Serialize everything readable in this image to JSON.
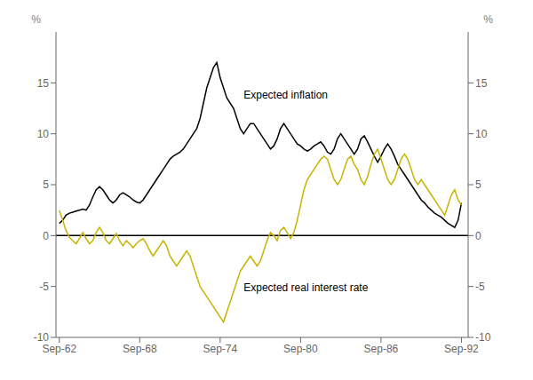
{
  "chart_data": {
    "type": "line",
    "x": [
      1962.75,
      1963.0,
      1963.25,
      1963.5,
      1963.75,
      1964.0,
      1964.25,
      1964.5,
      1964.75,
      1965.0,
      1965.25,
      1965.5,
      1965.75,
      1966.0,
      1966.25,
      1966.5,
      1966.75,
      1967.0,
      1967.25,
      1967.5,
      1967.75,
      1968.0,
      1968.25,
      1968.5,
      1968.75,
      1969.0,
      1969.25,
      1969.5,
      1969.75,
      1970.0,
      1970.25,
      1970.5,
      1970.75,
      1971.0,
      1971.25,
      1971.5,
      1971.75,
      1972.0,
      1972.25,
      1972.5,
      1972.75,
      1973.0,
      1973.25,
      1973.5,
      1973.75,
      1974.0,
      1974.25,
      1974.5,
      1974.75,
      1975.0,
      1975.25,
      1975.5,
      1975.75,
      1976.0,
      1976.25,
      1976.5,
      1976.75,
      1977.0,
      1977.25,
      1977.5,
      1977.75,
      1978.0,
      1978.25,
      1978.5,
      1978.75,
      1979.0,
      1979.25,
      1979.5,
      1979.75,
      1980.0,
      1980.25,
      1980.5,
      1980.75,
      1981.0,
      1981.25,
      1981.5,
      1981.75,
      1982.0,
      1982.25,
      1982.5,
      1982.75,
      1983.0,
      1983.25,
      1983.5,
      1983.75,
      1984.0,
      1984.25,
      1984.5,
      1984.75,
      1985.0,
      1985.25,
      1985.5,
      1985.75,
      1986.0,
      1986.25,
      1986.5,
      1986.75,
      1987.0,
      1987.25,
      1987.5,
      1987.75,
      1988.0,
      1988.25,
      1988.5,
      1988.75,
      1989.0,
      1989.25,
      1989.5,
      1989.75,
      1990.0,
      1990.25,
      1990.5,
      1990.75,
      1991.0,
      1991.25,
      1991.5,
      1991.75,
      1992.0,
      1992.25,
      1992.5,
      1992.75
    ],
    "series": [
      {
        "color": "#000000",
        "values": [
          1.2,
          1.5,
          2.0,
          2.2,
          2.3,
          2.4,
          2.5,
          2.6,
          2.5,
          3.0,
          3.8,
          4.5,
          4.8,
          4.5,
          4.0,
          3.5,
          3.2,
          3.5,
          4.0,
          4.2,
          4.0,
          3.8,
          3.5,
          3.3,
          3.2,
          3.5,
          4.0,
          4.5,
          5.0,
          5.5,
          6.0,
          6.5,
          7.0,
          7.5,
          7.8,
          8.0,
          8.2,
          8.5,
          9.0,
          9.5,
          10.0,
          10.5,
          11.5,
          13.0,
          14.5,
          15.5,
          16.5,
          17.0,
          15.5,
          14.5,
          13.5,
          13.0,
          12.5,
          11.5,
          10.5,
          10.0,
          10.5,
          11.0,
          11.0,
          10.5,
          10.0,
          9.5,
          9.0,
          8.5,
          8.8,
          9.5,
          10.5,
          11.0,
          10.5,
          10.0,
          9.5,
          9.0,
          8.8,
          8.5,
          8.3,
          8.5,
          8.8,
          9.0,
          9.2,
          8.8,
          8.2,
          8.0,
          8.5,
          9.5,
          10.0,
          9.5,
          9.0,
          8.5,
          8.0,
          8.5,
          9.5,
          9.8,
          9.2,
          8.5,
          7.8,
          7.2,
          7.8,
          8.5,
          9.0,
          8.5,
          7.8,
          7.0,
          6.5,
          6.0,
          5.5,
          5.0,
          4.5,
          4.0,
          3.5,
          3.2,
          2.8,
          2.5,
          2.2,
          2.0,
          1.8,
          1.5,
          1.2,
          1.0,
          0.8,
          1.5,
          3.2
        ]
      },
      {
        "color": "#c8b400",
        "values": [
          2.5,
          1.5,
          0.5,
          -0.2,
          -0.5,
          -0.8,
          -0.3,
          0.3,
          -0.3,
          -0.8,
          -0.5,
          0.3,
          0.8,
          0.3,
          -0.5,
          -0.8,
          -0.3,
          0.2,
          -0.5,
          -1.0,
          -0.5,
          -0.8,
          -1.2,
          -0.8,
          -0.5,
          -0.3,
          -0.8,
          -1.5,
          -2.0,
          -1.5,
          -1.0,
          -0.5,
          -1.0,
          -2.0,
          -2.5,
          -3.0,
          -2.5,
          -2.0,
          -1.5,
          -2.0,
          -3.0,
          -4.0,
          -5.0,
          -5.5,
          -6.0,
          -6.5,
          -7.0,
          -7.5,
          -8.0,
          -8.5,
          -7.5,
          -6.5,
          -5.5,
          -4.5,
          -3.5,
          -3.0,
          -2.5,
          -2.0,
          -2.5,
          -3.0,
          -2.5,
          -1.5,
          -0.5,
          0.3,
          0.0,
          -0.5,
          0.5,
          0.8,
          0.3,
          -0.3,
          0.3,
          1.5,
          3.0,
          4.5,
          5.5,
          6.0,
          6.5,
          7.0,
          7.5,
          7.8,
          7.5,
          6.5,
          5.5,
          5.0,
          5.5,
          6.5,
          7.5,
          7.8,
          7.0,
          6.5,
          5.5,
          5.0,
          5.8,
          7.0,
          8.0,
          8.5,
          7.5,
          6.5,
          5.5,
          5.0,
          5.5,
          6.5,
          7.5,
          8.0,
          7.5,
          6.5,
          5.5,
          5.0,
          5.5,
          5.0,
          4.5,
          4.0,
          3.5,
          3.0,
          2.5,
          2.0,
          3.0,
          4.0,
          4.5,
          3.5,
          3.0
        ]
      }
    ],
    "xlim": [
      1962.5,
      1993.25
    ],
    "xticks": [
      {
        "value": 1962.75,
        "label": "Sep-62"
      },
      {
        "value": 1968.75,
        "label": "Sep-68"
      },
      {
        "value": 1974.75,
        "label": "Sep-74"
      },
      {
        "value": 1980.75,
        "label": "Sep-80"
      },
      {
        "value": 1986.75,
        "label": "Sep-86"
      },
      {
        "value": 1992.75,
        "label": "Sep-92"
      }
    ],
    "ylim": [
      -10,
      20
    ],
    "yticks": [
      -10,
      -5,
      0,
      5,
      10,
      15
    ],
    "y2lim": [
      -10,
      20
    ],
    "y2ticks": [
      -10,
      -5,
      0,
      5,
      10,
      15
    ],
    "ylabel": "%",
    "y2label": "%",
    "hlines": [
      0
    ],
    "annotations": [
      {
        "text": "Expected inflation",
        "x": 1976.5,
        "y": 13.5
      },
      {
        "text": "Expected real interest rate",
        "x": 1976.5,
        "y": -5.5
      }
    ],
    "grid": false
  }
}
